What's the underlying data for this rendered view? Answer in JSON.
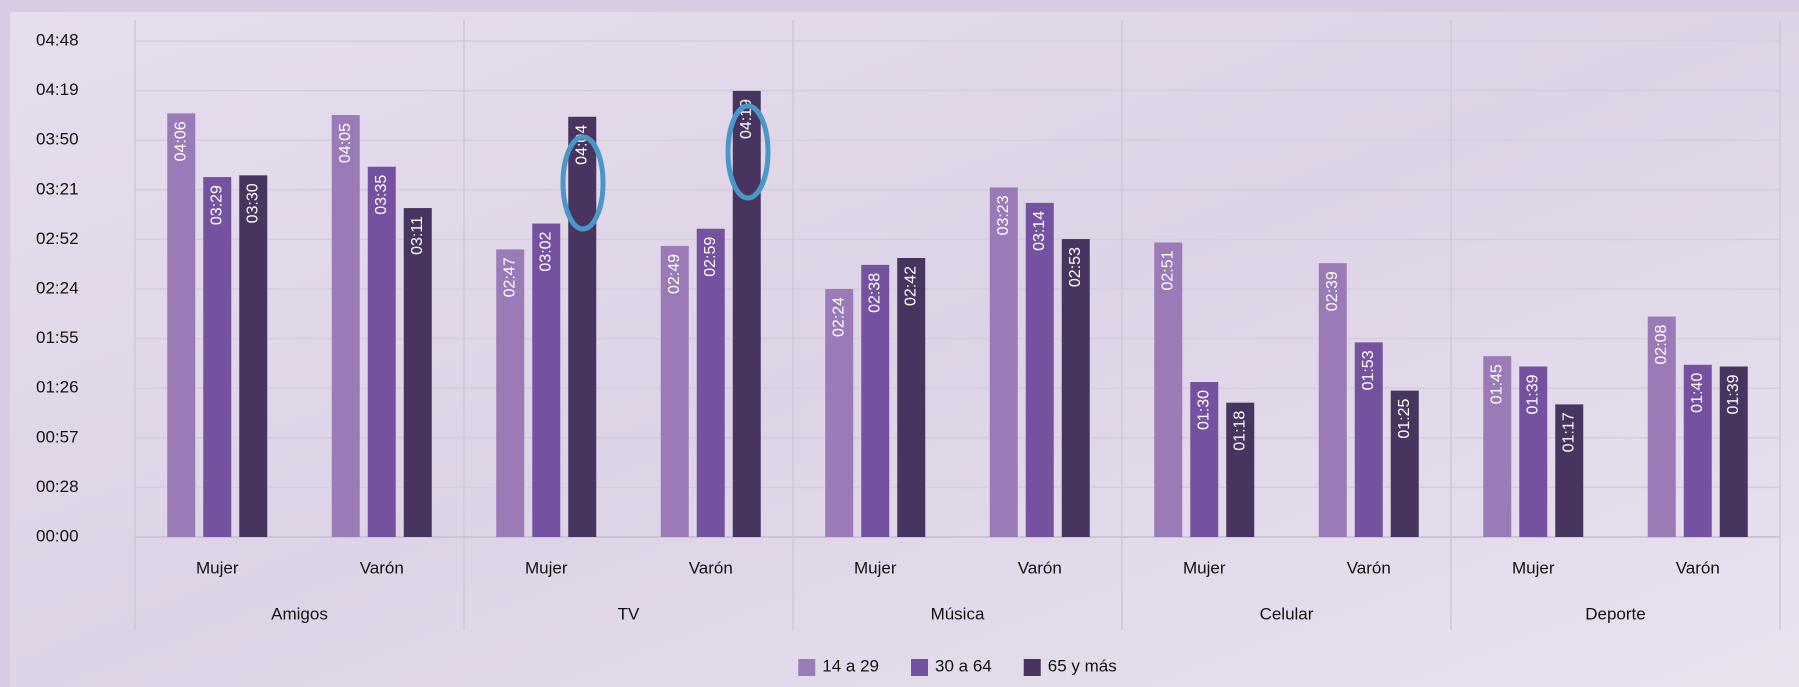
{
  "chart_data": {
    "type": "bar",
    "groups": [
      "Amigos",
      "TV",
      "Música",
      "Celular",
      "Deporte"
    ],
    "categories": [
      "Mujer",
      "Varón",
      "Mujer",
      "Varón",
      "Mujer",
      "Varón",
      "Mujer",
      "Varón",
      "Mujer",
      "Varón"
    ],
    "series": [
      {
        "name": "14 a 29",
        "color": "#9a7bb8",
        "values": [
          246,
          245,
          167,
          169,
          144,
          203,
          171,
          159,
          105,
          128
        ],
        "value_labels": [
          "04:06",
          "04:05",
          "02:47",
          "02:49",
          "02:24",
          "03:23",
          "02:51",
          "02:39",
          "01:45",
          "02:08"
        ]
      },
      {
        "name": "30 a 64",
        "color": "#7452a0",
        "values": [
          209,
          215,
          182,
          179,
          158,
          194,
          90,
          113,
          99,
          100
        ],
        "value_labels": [
          "03:29",
          "03:35",
          "03:02",
          "02:59",
          "02:38",
          "03:14",
          "01:30",
          "01:53",
          "01:39",
          "01:40"
        ]
      },
      {
        "name": "65 y más",
        "color": "#47355f",
        "values": [
          210,
          191,
          244,
          259,
          162,
          173,
          78,
          85,
          77,
          99
        ],
        "value_labels": [
          "03:30",
          "03:11",
          "04:04",
          "04:19",
          "02:42",
          "02:53",
          "01:18",
          "01:25",
          "01:17",
          "01:39"
        ]
      }
    ],
    "ylim": [
      0,
      288
    ],
    "yticks": [
      {
        "value": 0,
        "label": "00:00"
      },
      {
        "value": 28.8,
        "label": "00:28"
      },
      {
        "value": 57.6,
        "label": "00:57"
      },
      {
        "value": 86.4,
        "label": "01:26"
      },
      {
        "value": 115.2,
        "label": "01:55"
      },
      {
        "value": 144,
        "label": "02:24"
      },
      {
        "value": 172.8,
        "label": "02:52"
      },
      {
        "value": 201.6,
        "label": "03:21"
      },
      {
        "value": 230.4,
        "label": "03:50"
      },
      {
        "value": 259.2,
        "label": "04:19"
      },
      {
        "value": 288,
        "label": "04:48"
      }
    ],
    "grid": true,
    "legend": "bottom"
  }
}
